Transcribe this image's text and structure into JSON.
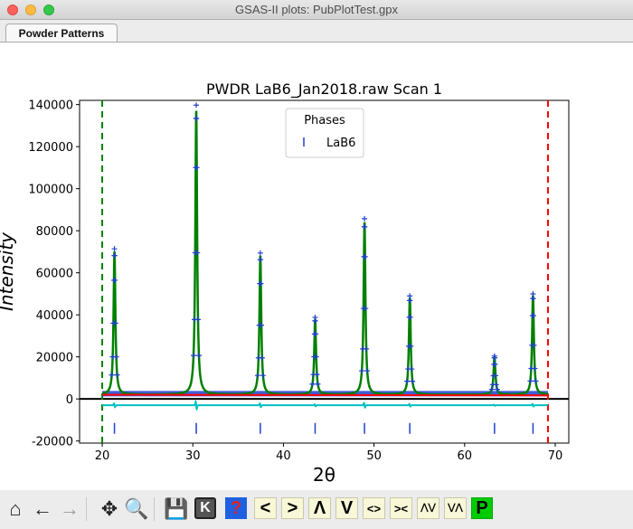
{
  "window": {
    "title": "GSAS-II plots: PubPlotTest.gpx"
  },
  "tabs": [
    {
      "label": "Powder Patterns",
      "active": true
    }
  ],
  "toolbar": {
    "buttons": [
      {
        "name": "home-icon",
        "glyph": "⌂"
      },
      {
        "name": "back-arrow-icon",
        "glyph": "←"
      },
      {
        "name": "forward-arrow-icon",
        "glyph": "→"
      },
      {
        "name": "pan-icon",
        "glyph": "✥"
      },
      {
        "name": "zoom-icon",
        "glyph": "🔍"
      },
      {
        "name": "save-icon",
        "glyph": "💾"
      },
      {
        "name": "k-key-icon",
        "glyph": "K"
      },
      {
        "name": "help-icon",
        "glyph": "?"
      },
      {
        "name": "left-key",
        "glyph": "<"
      },
      {
        "name": "right-key",
        "glyph": ">"
      },
      {
        "name": "up-key",
        "glyph": "Λ"
      },
      {
        "name": "down-key",
        "glyph": "V"
      },
      {
        "name": "expand-x-key",
        "glyph": "<>"
      },
      {
        "name": "shrink-x-key",
        "glyph": "><"
      },
      {
        "name": "expand-y-key",
        "glyph": "⋀⋁"
      },
      {
        "name": "shrink-y-key",
        "glyph": "⋁⋀"
      },
      {
        "name": "p-key",
        "glyph": "P"
      }
    ],
    "colors": {
      "help": "#2060e0",
      "p_key": "#00cc00"
    }
  },
  "chart_data": {
    "type": "line",
    "title": "PWDR LaB6_Jan2018.raw Scan 1",
    "xlabel": "2θ",
    "ylabel": "Intensity",
    "xlim": [
      17.5,
      71.5
    ],
    "ylim": [
      -21000,
      142000
    ],
    "xticks": [
      20,
      30,
      40,
      50,
      60,
      70
    ],
    "yticks": [
      -20000,
      0,
      20000,
      40000,
      60000,
      80000,
      100000,
      120000,
      140000
    ],
    "limits": {
      "lower": 20.0,
      "upper": 69.2,
      "lower_color": "#008000",
      "upper_color": "#ff0000"
    },
    "background_level": 2000,
    "difference_offset": -3000,
    "tick_row_y": -14000,
    "peaks": [
      {
        "x": 21.35,
        "height": 68000,
        "width": 0.12
      },
      {
        "x": 30.38,
        "height": 135000,
        "width": 0.12
      },
      {
        "x": 37.45,
        "height": 66000,
        "width": 0.12
      },
      {
        "x": 43.5,
        "height": 36000,
        "width": 0.12
      },
      {
        "x": 48.95,
        "height": 82000,
        "width": 0.12
      },
      {
        "x": 53.95,
        "height": 46000,
        "width": 0.12
      },
      {
        "x": 63.3,
        "height": 18000,
        "width": 0.12
      },
      {
        "x": 67.55,
        "height": 47000,
        "width": 0.12
      }
    ],
    "phase_ticks": [
      21.35,
      30.38,
      37.45,
      43.5,
      48.95,
      53.95,
      63.3,
      67.55
    ],
    "legend": {
      "title": "Phases",
      "entries": [
        "LaB6"
      ],
      "position": "top-center"
    },
    "series_colors": {
      "observed": "#1f3fd0",
      "calculated": "#008000",
      "background": "#ff0000",
      "difference": "#00c0c0",
      "phase_ticks": "#1f3fd0"
    }
  }
}
